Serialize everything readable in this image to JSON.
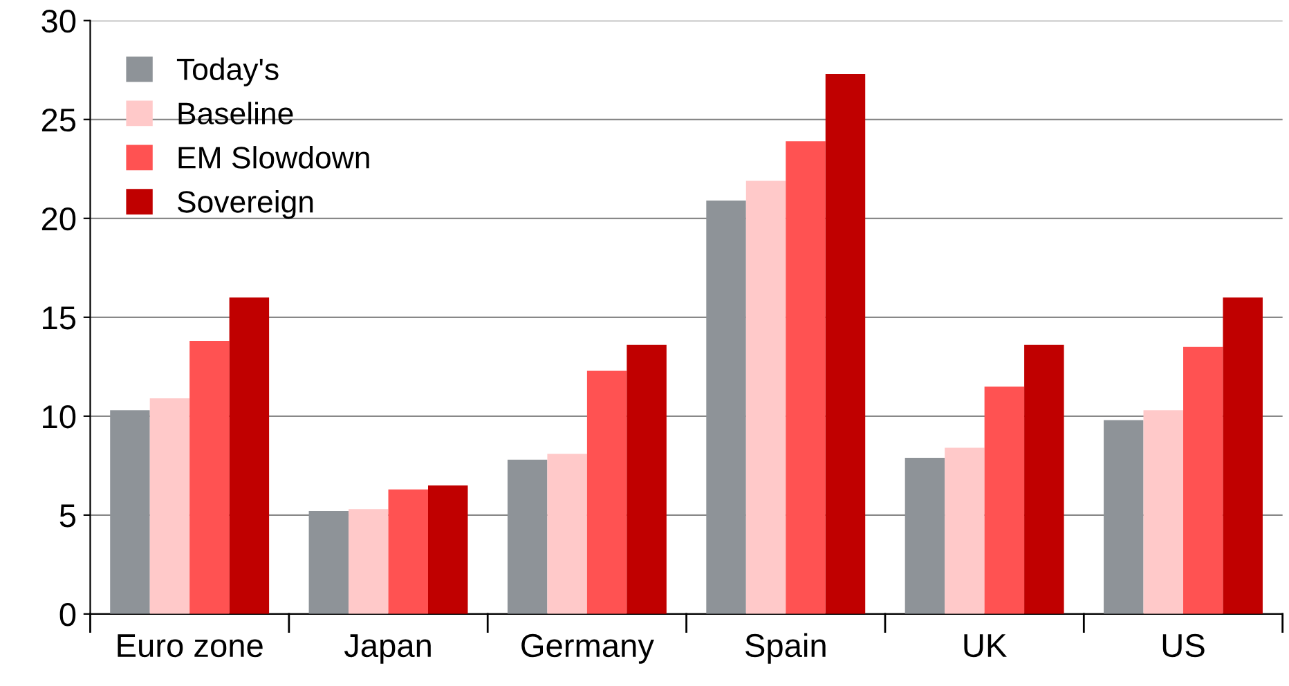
{
  "chart_data": {
    "type": "bar",
    "categories": [
      "Euro zone",
      "Japan",
      "Germany",
      "Spain",
      "UK",
      "US"
    ],
    "series": [
      {
        "name": "Today's",
        "color": "#8e9398",
        "values": [
          10.3,
          5.2,
          7.8,
          20.9,
          7.9,
          9.8
        ]
      },
      {
        "name": "Baseline",
        "color": "#ffc9c9",
        "values": [
          10.9,
          5.3,
          8.1,
          21.9,
          8.4,
          10.3
        ]
      },
      {
        "name": "EM Slowdown",
        "color": "#ff5252",
        "values": [
          13.8,
          6.3,
          12.3,
          23.9,
          11.5,
          13.5
        ]
      },
      {
        "name": "Sovereign",
        "color": "#c00000",
        "values": [
          16.0,
          6.5,
          13.6,
          27.3,
          13.6,
          16.0
        ]
      }
    ],
    "ylim": [
      0,
      30
    ],
    "yticks": [
      0,
      5,
      10,
      15,
      20,
      25,
      30
    ],
    "grid": "y",
    "legend": "top left"
  }
}
